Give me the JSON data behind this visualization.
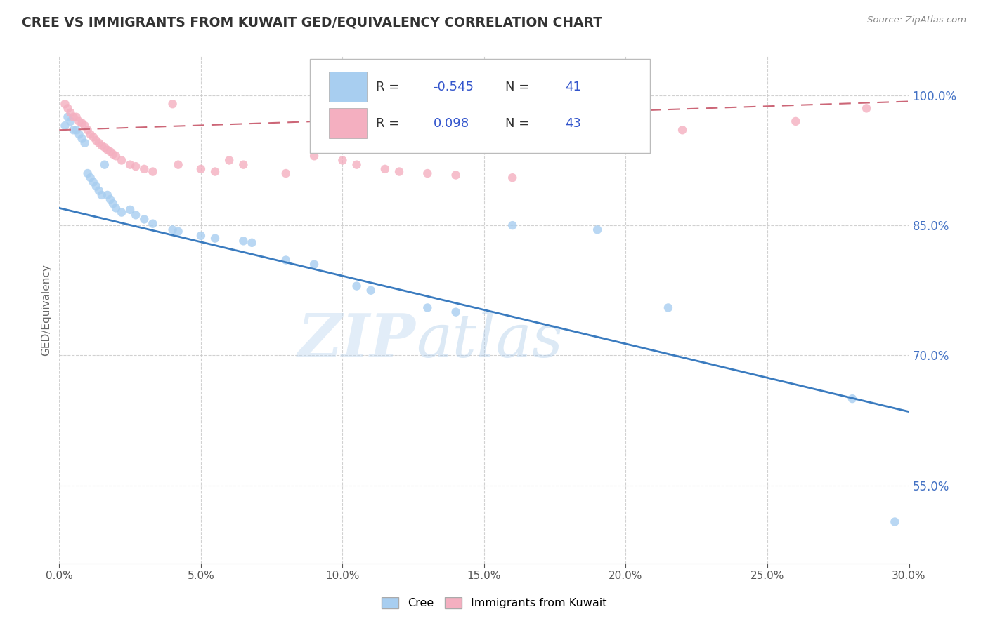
{
  "title": "CREE VS IMMIGRANTS FROM KUWAIT GED/EQUIVALENCY CORRELATION CHART",
  "source": "Source: ZipAtlas.com",
  "ylabel": "GED/Equivalency",
  "xmin": 0.0,
  "xmax": 0.3,
  "ymin": 0.46,
  "ymax": 1.045,
  "yticks": [
    0.55,
    0.7,
    0.85,
    1.0
  ],
  "xticks": [
    0.0,
    0.05,
    0.1,
    0.15,
    0.2,
    0.25,
    0.3
  ],
  "bg_color": "#ffffff",
  "grid_color": "#cccccc",
  "cree_color": "#a8cef0",
  "kuwait_color": "#f4afc0",
  "cree_line_color": "#3a7bbf",
  "kuwait_line_color": "#cc6677",
  "cree_r": -0.545,
  "cree_n": 41,
  "kuwait_r": 0.098,
  "kuwait_n": 43,
  "cree_scatter": [
    [
      0.002,
      0.965
    ],
    [
      0.003,
      0.975
    ],
    [
      0.004,
      0.97
    ],
    [
      0.005,
      0.96
    ],
    [
      0.006,
      0.96
    ],
    [
      0.007,
      0.955
    ],
    [
      0.008,
      0.95
    ],
    [
      0.009,
      0.945
    ],
    [
      0.01,
      0.91
    ],
    [
      0.011,
      0.905
    ],
    [
      0.012,
      0.9
    ],
    [
      0.013,
      0.895
    ],
    [
      0.014,
      0.89
    ],
    [
      0.015,
      0.885
    ],
    [
      0.016,
      0.92
    ],
    [
      0.017,
      0.885
    ],
    [
      0.018,
      0.88
    ],
    [
      0.019,
      0.875
    ],
    [
      0.02,
      0.87
    ],
    [
      0.022,
      0.865
    ],
    [
      0.025,
      0.868
    ],
    [
      0.027,
      0.862
    ],
    [
      0.03,
      0.857
    ],
    [
      0.033,
      0.852
    ],
    [
      0.04,
      0.845
    ],
    [
      0.042,
      0.843
    ],
    [
      0.05,
      0.838
    ],
    [
      0.055,
      0.835
    ],
    [
      0.065,
      0.832
    ],
    [
      0.068,
      0.83
    ],
    [
      0.08,
      0.81
    ],
    [
      0.09,
      0.805
    ],
    [
      0.105,
      0.78
    ],
    [
      0.11,
      0.775
    ],
    [
      0.13,
      0.755
    ],
    [
      0.14,
      0.75
    ],
    [
      0.16,
      0.85
    ],
    [
      0.19,
      0.845
    ],
    [
      0.215,
      0.755
    ],
    [
      0.28,
      0.65
    ],
    [
      0.295,
      0.508
    ]
  ],
  "kuwait_scatter": [
    [
      0.002,
      0.99
    ],
    [
      0.003,
      0.985
    ],
    [
      0.004,
      0.98
    ],
    [
      0.005,
      0.975
    ],
    [
      0.006,
      0.975
    ],
    [
      0.007,
      0.97
    ],
    [
      0.008,
      0.968
    ],
    [
      0.009,
      0.965
    ],
    [
      0.01,
      0.96
    ],
    [
      0.011,
      0.955
    ],
    [
      0.012,
      0.952
    ],
    [
      0.013,
      0.948
    ],
    [
      0.014,
      0.945
    ],
    [
      0.015,
      0.942
    ],
    [
      0.016,
      0.94
    ],
    [
      0.017,
      0.937
    ],
    [
      0.018,
      0.935
    ],
    [
      0.019,
      0.932
    ],
    [
      0.02,
      0.93
    ],
    [
      0.022,
      0.925
    ],
    [
      0.025,
      0.92
    ],
    [
      0.027,
      0.918
    ],
    [
      0.03,
      0.915
    ],
    [
      0.033,
      0.912
    ],
    [
      0.04,
      0.99
    ],
    [
      0.042,
      0.92
    ],
    [
      0.05,
      0.915
    ],
    [
      0.055,
      0.912
    ],
    [
      0.06,
      0.925
    ],
    [
      0.065,
      0.92
    ],
    [
      0.08,
      0.91
    ],
    [
      0.09,
      0.93
    ],
    [
      0.1,
      0.925
    ],
    [
      0.105,
      0.92
    ],
    [
      0.115,
      0.915
    ],
    [
      0.12,
      0.912
    ],
    [
      0.13,
      0.91
    ],
    [
      0.14,
      0.908
    ],
    [
      0.16,
      0.905
    ],
    [
      0.175,
      0.945
    ],
    [
      0.22,
      0.96
    ],
    [
      0.26,
      0.97
    ],
    [
      0.285,
      0.985
    ]
  ]
}
